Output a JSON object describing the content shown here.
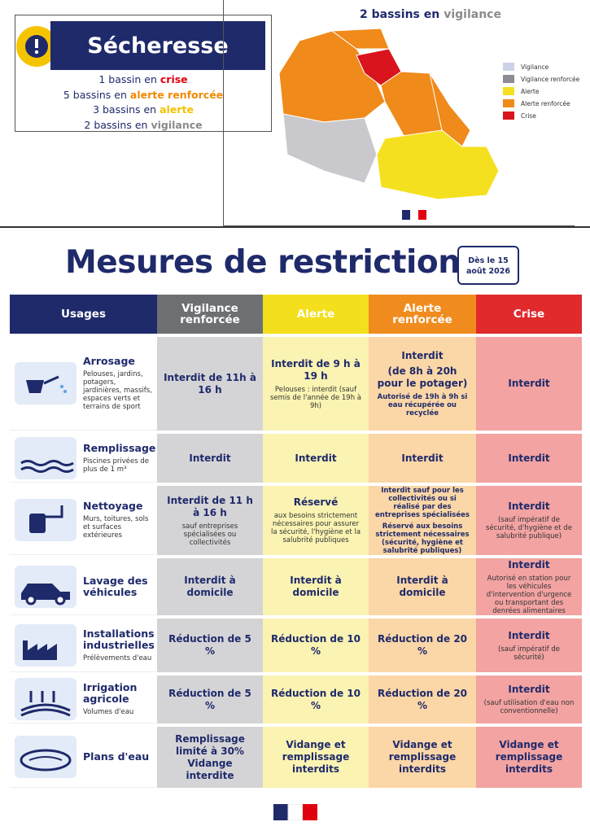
{
  "summary": {
    "title": "Sécheresse",
    "lines": [
      {
        "lead": "1 bassin en",
        "word": "crise",
        "color": "#e1000f"
      },
      {
        "lead": "5 bassins en",
        "word": "alerte renforcée",
        "color": "#f08a00"
      },
      {
        "lead": "3 bassins en",
        "word": "alerte",
        "color": "#f2c300"
      },
      {
        "lead": "2 bassins en",
        "word": "vigilance",
        "color": "#8a8a8a"
      }
    ]
  },
  "map": {
    "title": {
      "lead": "2 bassins en",
      "word": "vigilance",
      "color": "#8a8a8a"
    },
    "legend": [
      {
        "label": "Vigilance",
        "color": "#cdd3e6"
      },
      {
        "label": "Vigilance renforcée",
        "color": "#8e8a96"
      },
      {
        "label": "Alerte",
        "color": "#f5e020"
      },
      {
        "label": "Alerte renforcée",
        "color": "#f08a1a"
      },
      {
        "label": "Crise",
        "color": "#d9141c"
      }
    ]
  },
  "header": {
    "title": "Mesures de restriction",
    "date_lead": "Dès le 15",
    "date": "août 2026"
  },
  "table": {
    "columns": [
      {
        "label": "Usages",
        "color": "#1f2a6b",
        "bg": "#ffffff"
      },
      {
        "label": "Vigilance renforcée",
        "color": "#6d6f73",
        "bg": "#d4d4d6"
      },
      {
        "label": "Alerte",
        "color": "#f3df1c",
        "bg": "#faf3b2"
      },
      {
        "label": "Alerte renforcée",
        "color": "#f08c1e",
        "bg": "#fbd6a6"
      },
      {
        "label": "Crise",
        "color": "#e02a2c",
        "bg": "#f2a3a2"
      }
    ],
    "rows": [
      {
        "name": "Arrosage",
        "desc": "Pelouses, jardins, potagers, jardinières, massifs, espaces verts et terrains de sport",
        "cells": [
          [
            {
              "text": "Interdit de 11h à 16 h",
              "bold": true
            }
          ],
          [
            {
              "text": "Interdit de 9 h à 19 h",
              "bold": true
            },
            {
              "text": "Pelouses : interdit (sauf semis de l'année de 19h à 9h)",
              "bold": false
            }
          ],
          [
            {
              "text": "Interdit",
              "bold": true
            },
            {
              "text": "(de 8h à 20h pour le potager)",
              "bold": true
            },
            {
              "text": "Autorisé de 19h à 9h si eau récupérée ou recyclée",
              "bold": true
            }
          ],
          [
            {
              "text": "Interdit",
              "bold": true
            }
          ]
        ]
      },
      {
        "name": "Remplissage",
        "desc": "Piscines privées de plus de 1 m³",
        "cells": [
          [
            {
              "text": "Interdit",
              "bold": true
            }
          ],
          [
            {
              "text": "Interdit",
              "bold": true
            }
          ],
          [
            {
              "text": "Interdit",
              "bold": true
            }
          ],
          [
            {
              "text": "Interdit",
              "bold": true
            }
          ]
        ]
      },
      {
        "name": "Nettoyage",
        "desc": "Murs, toitures, sols et surfaces extérieures",
        "cells": [
          [
            {
              "text": "Interdit de 11 h à 16 h",
              "bold": true
            },
            {
              "text": "sauf entreprises spécialisées ou collectivités",
              "bold": false
            }
          ],
          [
            {
              "text": "Réservé",
              "bold": true
            },
            {
              "text": "aux besoins strictement nécessaires pour assurer la sécurité, l'hygiène et la salubrité publiques",
              "bold": false
            }
          ],
          [
            {
              "text": "Interdit sauf pour les collectivités ou si réalisé par des entreprises spécialisées",
              "bold": true
            },
            {
              "text": "Réservé aux besoins strictement nécessaires (sécurité, hygiène et salubrité publiques)",
              "bold": true
            }
          ],
          [
            {
              "text": "Interdit",
              "bold": true
            },
            {
              "text": "(sauf impératif de sécurité, d'hygiène et de salubrité publique)",
              "bold": false
            }
          ]
        ]
      },
      {
        "name": "Lavage des véhicules",
        "desc": null,
        "cells": [
          [
            {
              "text": "Interdit à domicile",
              "bold": true
            }
          ],
          [
            {
              "text": "Interdit à domicile",
              "bold": true
            }
          ],
          [
            {
              "text": "Interdit à domicile",
              "bold": true
            }
          ],
          [
            {
              "text": "Interdit",
              "bold": true
            },
            {
              "text": "Autorisé en station pour les véhicules d'intervention d'urgence ou transportant des denrées alimentaires",
              "bold": false
            }
          ]
        ]
      },
      {
        "name": "Installations industrielles",
        "desc": "Prélèvements d'eau",
        "cells": [
          [
            {
              "text": "Réduction de 5 %",
              "bold": true
            }
          ],
          [
            {
              "text": "Réduction de 10 %",
              "bold": true
            }
          ],
          [
            {
              "text": "Réduction de 20 %",
              "bold": true
            }
          ],
          [
            {
              "text": "Interdit",
              "bold": true
            },
            {
              "text": "(sauf impératif de sécurité)",
              "bold": false
            }
          ]
        ]
      },
      {
        "name": "Irrigation agricole",
        "desc": "Volumes d'eau",
        "cells": [
          [
            {
              "text": "Réduction de 5 %",
              "bold": true
            }
          ],
          [
            {
              "text": "Réduction de 10 %",
              "bold": true
            }
          ],
          [
            {
              "text": "Réduction de 20 %",
              "bold": true
            }
          ],
          [
            {
              "text": "Interdit",
              "bold": true
            },
            {
              "text": "(sauf utilisation d'eau non conventionnelle)",
              "bold": false
            }
          ]
        ]
      },
      {
        "name": "Plans d'eau",
        "desc": null,
        "cells": [
          [
            {
              "text": "Remplissage limité à 30% Vidange interdite",
              "bold": true
            }
          ],
          [
            {
              "text": "Vidange et remplissage interdits",
              "bold": true
            }
          ],
          [
            {
              "text": "Vidange et remplissage interdits",
              "bold": true
            }
          ],
          [
            {
              "text": "Vidange et remplissage interdits",
              "bold": true
            }
          ]
        ]
      }
    ]
  }
}
